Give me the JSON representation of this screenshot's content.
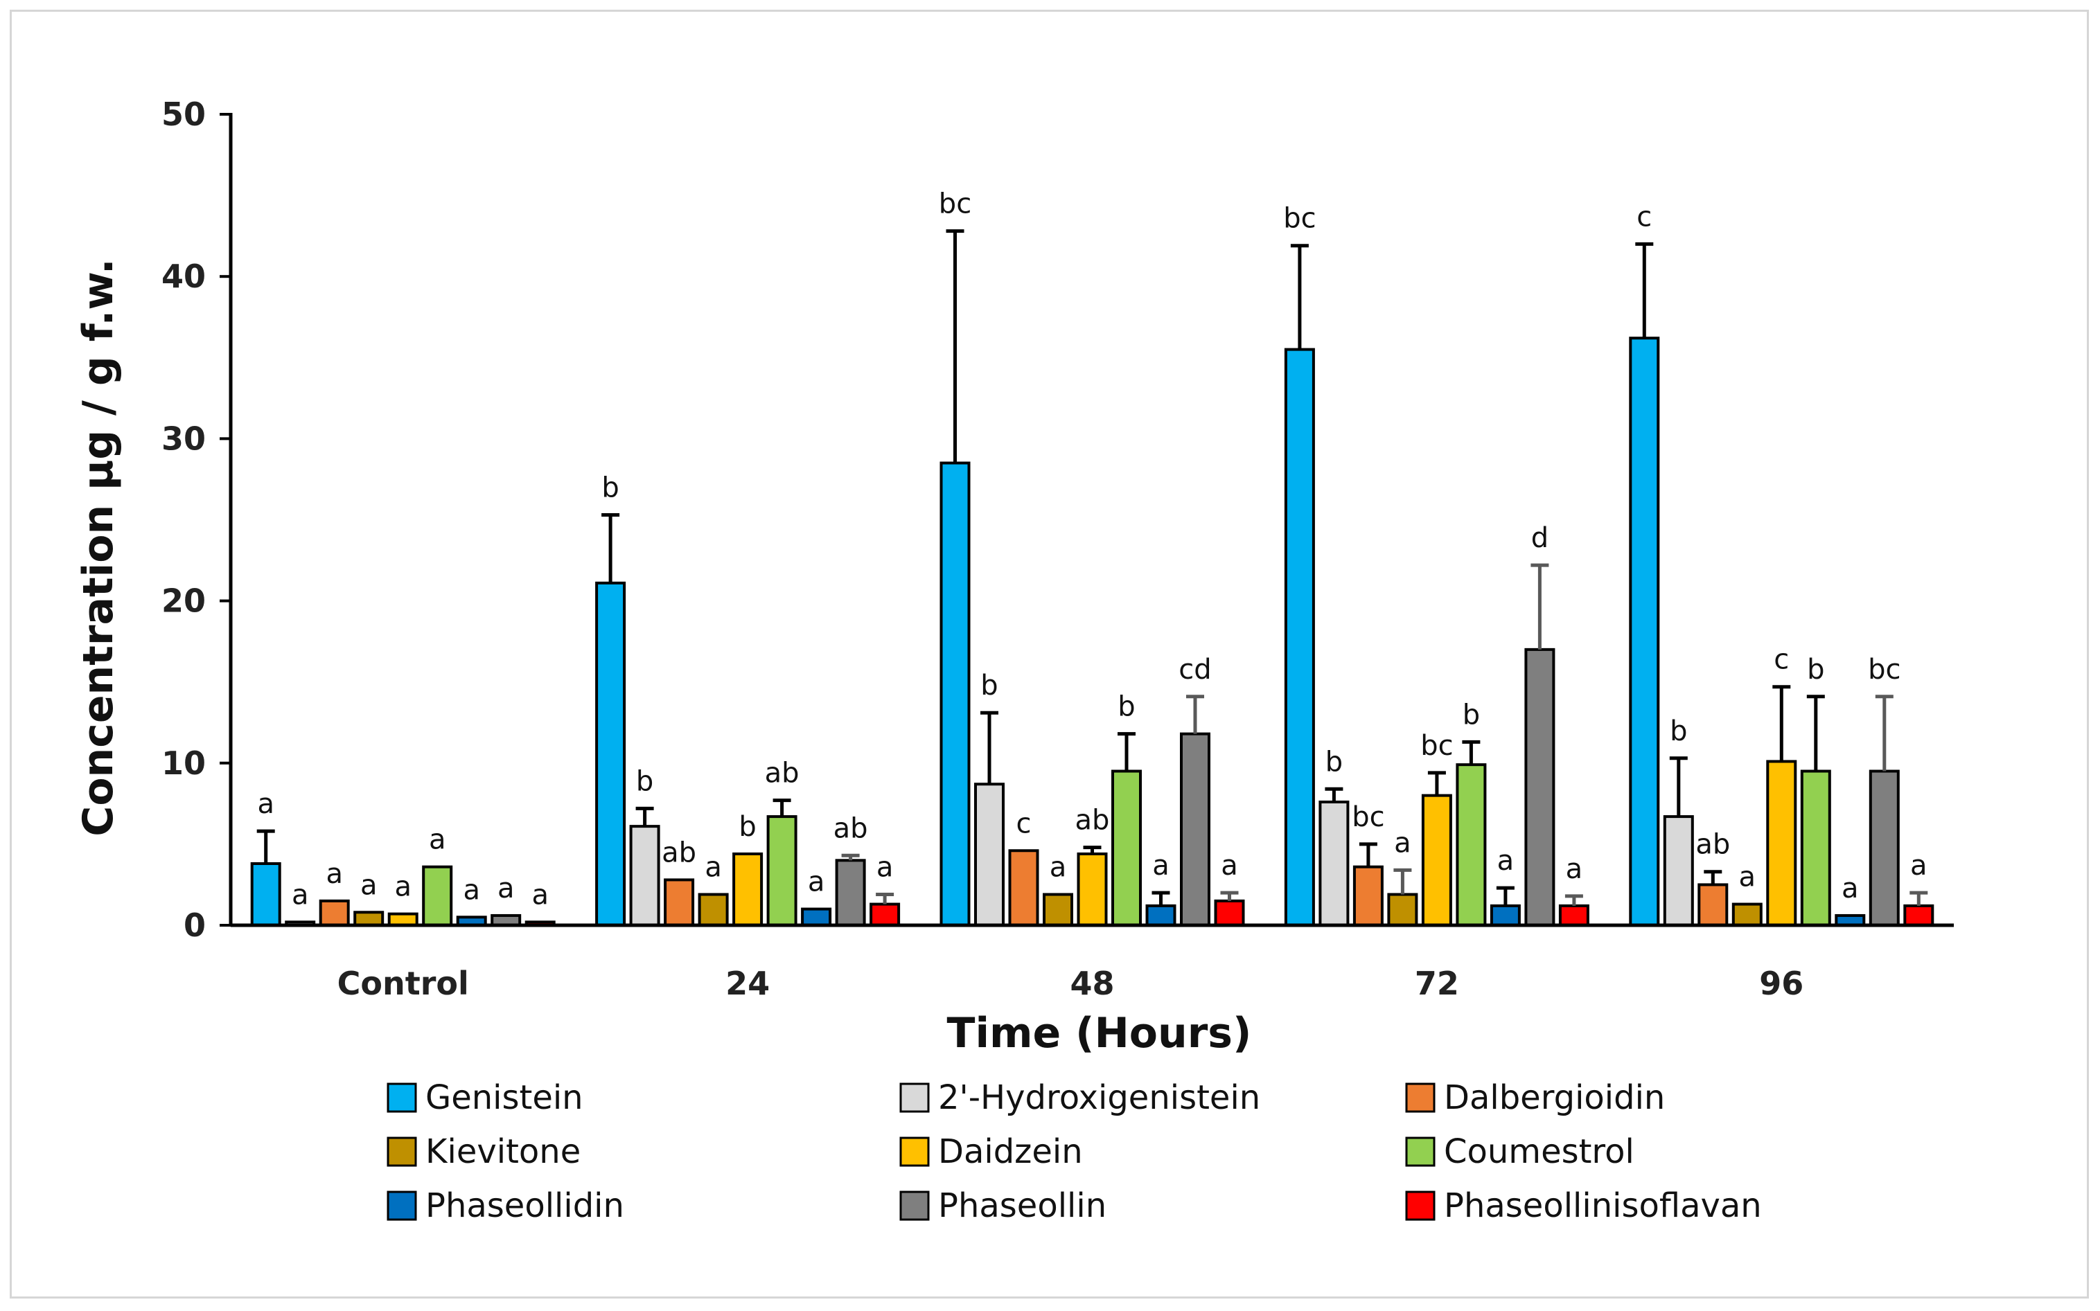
{
  "chart_data": {
    "type": "bar",
    "title": "",
    "xlabel": "Time (Hours)",
    "ylabel": "Concentration µg / g f.w.",
    "ylim": [
      0,
      50
    ],
    "yticks": [
      0,
      10,
      20,
      30,
      40,
      50
    ],
    "categories": [
      "Control",
      "24",
      "48",
      "72",
      "96"
    ],
    "legend_position": "bottom",
    "series": [
      {
        "name": "Genistein",
        "color": "#00b0f0",
        "values": [
          3.8,
          21.1,
          28.5,
          35.5,
          36.2
        ],
        "errors": [
          2.0,
          4.2,
          14.3,
          6.4,
          5.8
        ],
        "sig": [
          "a",
          "b",
          "bc",
          "bc",
          "c"
        ]
      },
      {
        "name": "2'-Hydroxigenistein",
        "color": "#d9d9d9",
        "values": [
          0.2,
          6.1,
          8.7,
          7.6,
          6.7
        ],
        "errors": [
          0.0,
          1.1,
          4.4,
          0.8,
          3.6
        ],
        "sig": [
          "a",
          "b",
          "b",
          "b",
          "b"
        ]
      },
      {
        "name": "Dalbergioidin",
        "color": "#ed7d31",
        "values": [
          1.5,
          2.8,
          4.6,
          3.6,
          2.5
        ],
        "errors": [
          0.0,
          0.0,
          0.0,
          1.4,
          0.8
        ],
        "sig": [
          "a",
          "ab",
          "c",
          "bc",
          "ab"
        ]
      },
      {
        "name": "Kievitone",
        "color": "#bf9000",
        "values": [
          0.8,
          1.9,
          1.9,
          1.9,
          1.3
        ],
        "errors": [
          0.0,
          0.0,
          0.0,
          1.5,
          0.0
        ],
        "sig": [
          "a",
          "a",
          "a",
          "a",
          "a"
        ]
      },
      {
        "name": "Daidzein",
        "color": "#ffc000",
        "values": [
          0.7,
          4.4,
          4.4,
          8.0,
          10.1
        ],
        "errors": [
          0.0,
          0.0,
          0.4,
          1.4,
          4.6
        ],
        "sig": [
          "a",
          "b",
          "ab",
          "bc",
          "c"
        ]
      },
      {
        "name": "Coumestrol",
        "color": "#92d050",
        "values": [
          3.6,
          6.7,
          9.5,
          9.9,
          9.5
        ],
        "errors": [
          0.0,
          1.0,
          2.3,
          1.4,
          4.6
        ],
        "sig": [
          "a",
          "ab",
          "b",
          "b",
          "b"
        ]
      },
      {
        "name": "Phaseollidin",
        "color": "#0070c0",
        "values": [
          0.5,
          1.0,
          1.2,
          1.2,
          0.6
        ],
        "errors": [
          0.0,
          0.0,
          0.8,
          1.1,
          0.0
        ],
        "sig": [
          "a",
          "a",
          "a",
          "a",
          "a"
        ]
      },
      {
        "name": "Phaseollin",
        "color": "#7f7f7f",
        "values": [
          0.6,
          4.0,
          11.8,
          17.0,
          9.5
        ],
        "errors": [
          0.0,
          0.3,
          2.3,
          5.2,
          4.6
        ],
        "sig": [
          "a",
          "ab",
          "cd",
          "d",
          "bc"
        ]
      },
      {
        "name": "Phaseollinisoflavan",
        "color": "#ff0000",
        "values": [
          0.2,
          1.3,
          1.5,
          1.2,
          1.2
        ],
        "errors": [
          0.0,
          0.6,
          0.5,
          0.6,
          0.8
        ],
        "sig": [
          "a",
          "a",
          "a",
          "a",
          "a"
        ]
      }
    ]
  }
}
